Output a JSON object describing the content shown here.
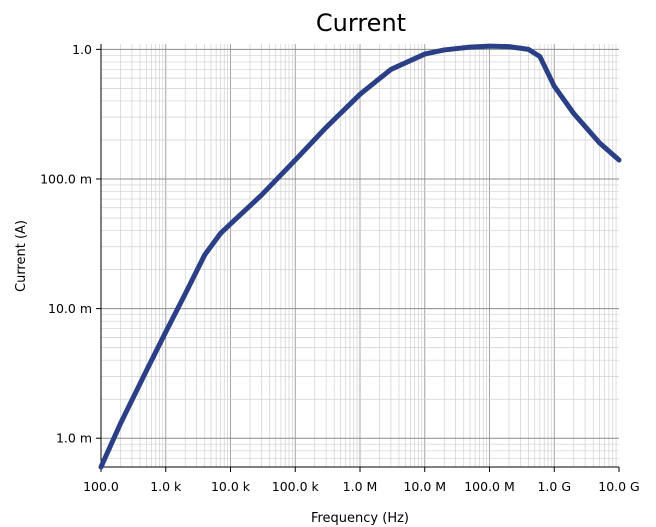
{
  "chart_data": {
    "type": "line",
    "title": "Current",
    "xlabel": "Frequency (Hz)",
    "ylabel": "Current (A)",
    "x_scale": "log",
    "y_scale": "log",
    "xlim": [
      100,
      10000000000
    ],
    "ylim": [
      0.0006,
      1.1
    ],
    "grid": true,
    "x_ticks": [
      {
        "value": 100,
        "label": "100.0"
      },
      {
        "value": 1000,
        "label": "1.0 k"
      },
      {
        "value": 10000,
        "label": "10.0 k"
      },
      {
        "value": 100000,
        "label": "100.0 k"
      },
      {
        "value": 1000000,
        "label": "1.0 M"
      },
      {
        "value": 10000000,
        "label": "10.0 M"
      },
      {
        "value": 100000000,
        "label": "100.0 M"
      },
      {
        "value": 1000000000,
        "label": "1.0 G"
      },
      {
        "value": 10000000000,
        "label": "10.0 G"
      }
    ],
    "y_ticks": [
      {
        "value": 0.001,
        "label": "1.0 m"
      },
      {
        "value": 0.01,
        "label": "10.0 m"
      },
      {
        "value": 0.1,
        "label": "100.0 m"
      },
      {
        "value": 1,
        "label": "1.0"
      }
    ],
    "series": [
      {
        "color": "#2b3f86",
        "x": [
          100,
          200,
          500,
          1000,
          2000,
          4000,
          7000,
          10000,
          30000,
          100000,
          300000,
          1000000,
          3000000,
          10000000,
          20000000,
          50000000,
          100000000,
          200000000,
          400000000,
          600000000,
          1000000000,
          2000000000,
          5000000000,
          10000000000
        ],
        "y": [
          0.0006,
          0.0013,
          0.0033,
          0.0066,
          0.013,
          0.026,
          0.038,
          0.045,
          0.075,
          0.14,
          0.25,
          0.45,
          0.7,
          0.92,
          0.99,
          1.04,
          1.06,
          1.05,
          1.0,
          0.88,
          0.52,
          0.32,
          0.19,
          0.14
        ]
      }
    ]
  }
}
